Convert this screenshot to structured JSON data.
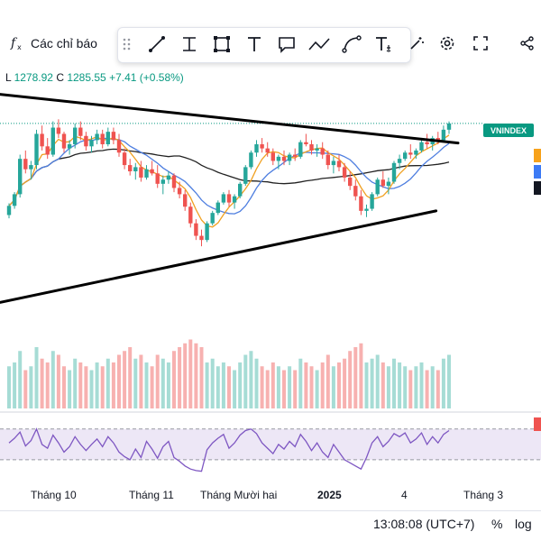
{
  "toolbar": {
    "indicators_label": "Các chỉ báo"
  },
  "legend": {
    "low_label": "L",
    "low_value": "1278.92",
    "close_label": "C",
    "close_value": "1285.55",
    "change": "+7.41 (+0.58%)"
  },
  "price_tag": "VNINDEX",
  "colors": {
    "up": "#26a69a",
    "down": "#ef5350",
    "volume_up": "#a6dcd5",
    "volume_down": "#f7b1b0",
    "ma_orange": "#f0a020",
    "ma_blue": "#4f7fe0",
    "ma_black": "#222222",
    "rsi_line": "#7e57c2",
    "rsi_band": "#ede7f6",
    "accent": "#089981"
  },
  "xaxis": {
    "labels": [
      "Tháng 10",
      "Tháng 11",
      "Tháng Mười hai",
      "2025",
      "4",
      "Tháng 3"
    ]
  },
  "status": {
    "time": "13:08:08 (UTC+7)",
    "percent": "%",
    "log": "log"
  },
  "icons": [
    "fx-icon",
    "drag-handle-icon",
    "trend-line-icon",
    "cross-line-icon",
    "rectangle-icon",
    "text-icon",
    "callout-icon",
    "path-icon",
    "curve-icon",
    "text-anchor-icon",
    "magic-icon",
    "gear-icon",
    "fullscreen-icon",
    "share-icon"
  ],
  "chart_data": {
    "type": "candlestick",
    "candles": [
      [
        1.0,
        1.28,
        0.92,
        1.22
      ],
      [
        1.22,
        1.55,
        1.15,
        1.5
      ],
      [
        1.5,
        2.45,
        1.42,
        2.35
      ],
      [
        2.35,
        2.55,
        2.0,
        2.1
      ],
      [
        2.1,
        2.3,
        1.85,
        2.2
      ],
      [
        2.2,
        3.05,
        2.1,
        2.95
      ],
      [
        2.95,
        3.15,
        2.55,
        2.65
      ],
      [
        2.65,
        2.85,
        2.35,
        2.45
      ],
      [
        2.45,
        3.25,
        2.4,
        3.1
      ],
      [
        3.1,
        3.3,
        2.85,
        2.95
      ],
      [
        2.95,
        3.0,
        2.5,
        2.6
      ],
      [
        2.6,
        2.8,
        2.45,
        2.7
      ],
      [
        2.7,
        3.2,
        2.6,
        3.1
      ],
      [
        3.1,
        3.25,
        2.8,
        2.9
      ],
      [
        2.9,
        3.0,
        2.55,
        2.65
      ],
      [
        2.65,
        2.9,
        2.5,
        2.8
      ],
      [
        2.8,
        3.05,
        2.7,
        2.95
      ],
      [
        2.95,
        3.05,
        2.6,
        2.7
      ],
      [
        2.7,
        3.1,
        2.65,
        3.0
      ],
      [
        3.0,
        3.1,
        2.7,
        2.8
      ],
      [
        2.8,
        2.95,
        2.4,
        2.5
      ],
      [
        2.5,
        2.6,
        2.1,
        2.2
      ],
      [
        2.2,
        2.35,
        1.95,
        2.05
      ],
      [
        2.05,
        2.25,
        1.85,
        2.15
      ],
      [
        2.15,
        2.3,
        1.8,
        1.9
      ],
      [
        1.9,
        2.2,
        1.85,
        2.1
      ],
      [
        2.1,
        2.3,
        1.95,
        2.0
      ],
      [
        2.0,
        2.2,
        1.65,
        1.75
      ],
      [
        1.75,
        1.95,
        1.5,
        1.85
      ],
      [
        1.85,
        2.05,
        1.75,
        1.95
      ],
      [
        1.95,
        2.0,
        1.55,
        1.65
      ],
      [
        1.65,
        1.8,
        1.4,
        1.5
      ],
      [
        1.5,
        1.6,
        1.1,
        1.2
      ],
      [
        1.2,
        1.3,
        0.7,
        0.8
      ],
      [
        0.8,
        0.9,
        0.4,
        0.5
      ],
      [
        0.5,
        0.65,
        0.25,
        0.4
      ],
      [
        0.4,
        0.85,
        0.35,
        0.8
      ],
      [
        0.8,
        1.1,
        0.75,
        1.05
      ],
      [
        1.05,
        1.35,
        1.0,
        1.3
      ],
      [
        1.3,
        1.55,
        1.25,
        1.5
      ],
      [
        1.5,
        1.6,
        1.2,
        1.3
      ],
      [
        1.3,
        1.5,
        1.15,
        1.45
      ],
      [
        1.45,
        1.8,
        1.4,
        1.75
      ],
      [
        1.75,
        2.2,
        1.7,
        2.15
      ],
      [
        2.15,
        2.55,
        2.1,
        2.5
      ],
      [
        2.5,
        2.8,
        2.4,
        2.7
      ],
      [
        2.7,
        2.85,
        2.5,
        2.6
      ],
      [
        2.6,
        2.75,
        2.4,
        2.5
      ],
      [
        2.5,
        2.6,
        2.2,
        2.3
      ],
      [
        2.3,
        2.45,
        2.1,
        2.4
      ],
      [
        2.4,
        2.55,
        2.2,
        2.3
      ],
      [
        2.3,
        2.5,
        2.2,
        2.45
      ],
      [
        2.45,
        2.6,
        2.3,
        2.4
      ],
      [
        2.4,
        2.8,
        2.35,
        2.75
      ],
      [
        2.75,
        2.95,
        2.65,
        2.7
      ],
      [
        2.7,
        2.8,
        2.45,
        2.55
      ],
      [
        2.55,
        2.7,
        2.4,
        2.6
      ],
      [
        2.6,
        2.75,
        2.35,
        2.45
      ],
      [
        2.45,
        2.55,
        2.1,
        2.2
      ],
      [
        2.2,
        2.4,
        2.0,
        2.3
      ],
      [
        2.3,
        2.45,
        2.05,
        2.15
      ],
      [
        2.15,
        2.25,
        1.8,
        1.9
      ],
      [
        1.9,
        2.05,
        1.6,
        1.7
      ],
      [
        1.7,
        1.85,
        1.35,
        1.45
      ],
      [
        1.45,
        1.6,
        1.0,
        1.1
      ],
      [
        1.1,
        1.25,
        0.95,
        1.15
      ],
      [
        1.15,
        1.55,
        1.1,
        1.5
      ],
      [
        1.5,
        1.9,
        1.45,
        1.85
      ],
      [
        1.85,
        2.05,
        1.65,
        1.7
      ],
      [
        1.7,
        1.9,
        1.5,
        1.8
      ],
      [
        1.8,
        2.3,
        1.75,
        2.25
      ],
      [
        2.25,
        2.45,
        2.1,
        2.35
      ],
      [
        2.35,
        2.55,
        2.3,
        2.5
      ],
      [
        2.5,
        2.7,
        2.35,
        2.45
      ],
      [
        2.45,
        2.6,
        2.35,
        2.55
      ],
      [
        2.55,
        2.8,
        2.5,
        2.75
      ],
      [
        2.75,
        2.95,
        2.6,
        2.7
      ],
      [
        2.7,
        2.9,
        2.55,
        2.85
      ],
      [
        2.85,
        3.0,
        2.7,
        2.8
      ],
      [
        2.8,
        3.15,
        2.75,
        3.05
      ],
      [
        3.05,
        3.25,
        2.95,
        3.2
      ]
    ],
    "volume": [
      0.55,
      0.6,
      0.75,
      0.5,
      0.55,
      0.8,
      0.65,
      0.6,
      0.75,
      0.7,
      0.55,
      0.5,
      0.65,
      0.6,
      0.55,
      0.5,
      0.6,
      0.55,
      0.65,
      0.6,
      0.7,
      0.75,
      0.8,
      0.65,
      0.7,
      0.6,
      0.55,
      0.7,
      0.65,
      0.6,
      0.75,
      0.8,
      0.85,
      0.9,
      0.85,
      0.8,
      0.6,
      0.65,
      0.55,
      0.6,
      0.55,
      0.5,
      0.6,
      0.7,
      0.75,
      0.65,
      0.55,
      0.5,
      0.6,
      0.55,
      0.5,
      0.55,
      0.5,
      0.65,
      0.6,
      0.55,
      0.5,
      0.6,
      0.7,
      0.55,
      0.6,
      0.65,
      0.75,
      0.8,
      0.85,
      0.6,
      0.65,
      0.7,
      0.6,
      0.55,
      0.65,
      0.6,
      0.55,
      0.5,
      0.55,
      0.6,
      0.5,
      0.55,
      0.5,
      0.65,
      0.7
    ],
    "rsi": [
      52,
      58,
      66,
      48,
      55,
      70,
      50,
      45,
      62,
      52,
      40,
      47,
      60,
      50,
      42,
      50,
      57,
      47,
      60,
      52,
      40,
      34,
      30,
      44,
      33,
      54,
      44,
      32,
      47,
      54,
      33,
      28,
      22,
      18,
      16,
      15,
      43,
      52,
      58,
      63,
      45,
      52,
      62,
      68,
      70,
      64,
      52,
      45,
      38,
      50,
      44,
      54,
      47,
      63,
      54,
      42,
      52,
      40,
      33,
      50,
      40,
      30,
      26,
      22,
      18,
      33,
      52,
      60,
      47,
      54,
      64,
      60,
      65,
      52,
      57,
      65,
      50,
      60,
      52,
      63,
      68
    ],
    "trendlines": [
      {
        "name": "upper",
        "from": [
          0.0,
          3.9
        ],
        "to": [
          1.0,
          2.73
        ]
      },
      {
        "name": "lower",
        "from": [
          0.0,
          -1.1
        ],
        "to": [
          0.95,
          1.1
        ]
      }
    ]
  }
}
